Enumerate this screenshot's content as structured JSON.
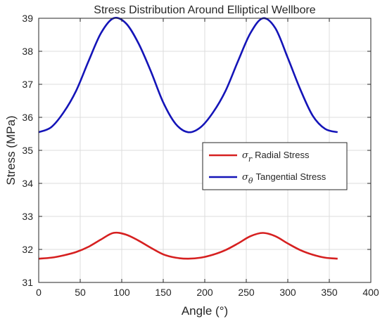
{
  "chart_data": {
    "type": "line",
    "title": "Stress Distribution Around Elliptical Wellbore",
    "xlabel": "Angle (°)",
    "ylabel": "Stress (MPa)",
    "xlim": [
      0,
      400
    ],
    "ylim": [
      31,
      39
    ],
    "xticks": [
      "0",
      "50",
      "100",
      "150",
      "200",
      "250",
      "300",
      "350",
      "400"
    ],
    "yticks": [
      "31",
      "32",
      "33",
      "34",
      "35",
      "36",
      "37",
      "38",
      "39"
    ],
    "grid": true,
    "legend_position": "right-center",
    "series": [
      {
        "name": "σr Radial Stress",
        "symbol": "σ",
        "subscript": "r",
        "label": "Radial Stress",
        "color": "#d62020",
        "x": [
          0,
          15,
          30,
          45,
          60,
          75,
          90,
          105,
          120,
          135,
          150,
          165,
          180,
          195,
          210,
          225,
          240,
          255,
          270,
          285,
          300,
          315,
          330,
          345,
          360
        ],
        "y": [
          31.72,
          31.75,
          31.82,
          31.92,
          32.08,
          32.3,
          32.5,
          32.45,
          32.27,
          32.05,
          31.85,
          31.75,
          31.72,
          31.75,
          31.84,
          31.98,
          32.18,
          32.4,
          32.5,
          32.4,
          32.18,
          31.98,
          31.84,
          31.75,
          31.72
        ]
      },
      {
        "name": "σθ Tangential Stress",
        "symbol": "σ",
        "subscript": "θ",
        "label": "Tangential Stress",
        "color": "#1414b8",
        "x": [
          0,
          15,
          30,
          45,
          60,
          75,
          90,
          105,
          120,
          135,
          150,
          165,
          180,
          195,
          210,
          225,
          240,
          255,
          270,
          285,
          300,
          315,
          330,
          345,
          360
        ],
        "y": [
          35.55,
          35.7,
          36.15,
          36.8,
          37.7,
          38.55,
          39.0,
          38.85,
          38.25,
          37.4,
          36.45,
          35.8,
          35.55,
          35.7,
          36.15,
          36.8,
          37.7,
          38.55,
          39.0,
          38.7,
          37.8,
          36.85,
          36.05,
          35.65,
          35.55
        ]
      }
    ]
  }
}
